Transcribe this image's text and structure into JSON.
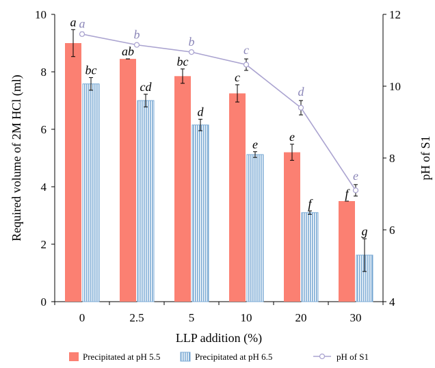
{
  "chart_data": {
    "type": "bar",
    "categories": [
      "0",
      "2.5",
      "5",
      "10",
      "20",
      "30"
    ],
    "xlabel": "LLP addition (%)",
    "ylabel": "Required volume of 2M HCl (ml)",
    "y2label": "pH of S1",
    "ylim": [
      0,
      10
    ],
    "y2lim": [
      4,
      12
    ],
    "yticks": [
      "0",
      "2",
      "4",
      "6",
      "8",
      "10"
    ],
    "y2ticks": [
      "4",
      "6",
      "8",
      "10",
      "12"
    ],
    "grid": false,
    "legend_position": "bottom",
    "series": [
      {
        "name": "Precipitated at pH 5.5",
        "kind": "bar",
        "color": "#fb8072",
        "values": [
          9.0,
          8.45,
          7.85,
          7.25,
          5.2,
          3.5
        ],
        "errors": [
          0.47,
          0.0,
          0.25,
          0.3,
          0.28,
          0.0
        ],
        "letters": [
          "a",
          "ab",
          "bc",
          "c",
          "e",
          "f"
        ]
      },
      {
        "name": "Precipitated at pH 6.5",
        "kind": "bar",
        "color": "#7baad4",
        "values": [
          7.58,
          7.0,
          6.15,
          5.12,
          3.1,
          1.62
        ],
        "errors": [
          0.22,
          0.22,
          0.2,
          0.1,
          0.06,
          0.57
        ],
        "letters": [
          "bc",
          "cd",
          "d",
          "e",
          "f",
          "g"
        ]
      },
      {
        "name": "pH of S1",
        "kind": "line",
        "axis": "right",
        "color": "#aaa3d0",
        "letter_color": "#8b86b8",
        "values": [
          11.45,
          11.15,
          10.95,
          10.6,
          9.4,
          7.1
        ],
        "errors": [
          0.05,
          0.04,
          0.04,
          0.16,
          0.2,
          0.16
        ],
        "letters": [
          "a",
          "b",
          "b",
          "c",
          "d",
          "e"
        ]
      }
    ]
  }
}
